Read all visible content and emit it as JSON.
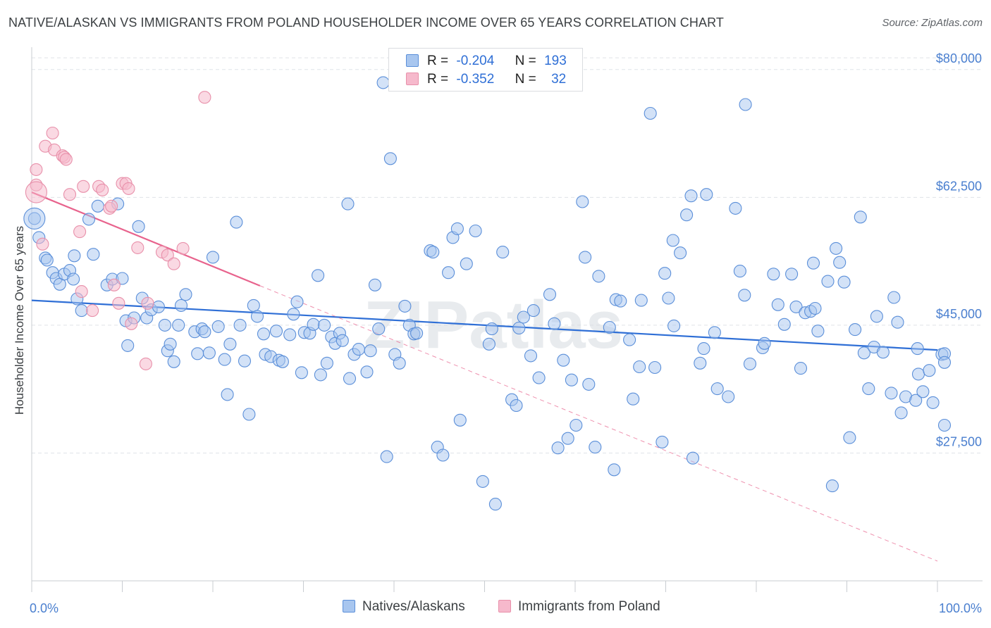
{
  "title": "NATIVE/ALASKAN VS IMMIGRANTS FROM POLAND HOUSEHOLDER INCOME OVER 65 YEARS CORRELATION CHART",
  "source": "Source: ZipAtlas.com",
  "watermark": "ZIPatlas",
  "colors": {
    "blue_fill": "#a8c6ef",
    "blue_stroke": "#5b8fd9",
    "blue_line": "#2f6fd6",
    "pink_fill": "#f6b9cc",
    "pink_stroke": "#e890aa",
    "pink_line": "#e8638d",
    "tick_text": "#4a7fcf",
    "grid": "#dfe3e8"
  },
  "legend": {
    "r_label": "R =",
    "n_label": "N =",
    "rows": [
      {
        "r": "-0.204",
        "n": "193"
      },
      {
        "r": "-0.352",
        "n": "32"
      }
    ]
  },
  "bottom_legend": [
    "Natives/Alaskans",
    "Immigrants from Poland"
  ],
  "chart_data": {
    "type": "scatter",
    "ylabel": "Householder Income Over 65 years",
    "xlabel": "",
    "xlim": [
      0,
      100
    ],
    "ylim": [
      10000,
      82000
    ],
    "x_tick_labels": [
      "0.0%",
      "100.0%"
    ],
    "y_ticks": [
      27500,
      45000,
      62500,
      80000
    ],
    "y_tick_labels": [
      "$27,500",
      "$45,000",
      "$62,500",
      "$80,000"
    ],
    "grid": "horizontal dashed",
    "legend_position": "top-center",
    "series": [
      {
        "name": "Natives/Alaskans",
        "color": "#a8c6ef",
        "trend": {
          "x": [
            0,
            100
          ],
          "y": [
            48400,
            41600
          ]
        },
        "points": [
          [
            0.3,
            59600
          ],
          [
            0.8,
            57000
          ],
          [
            1.5,
            54200
          ],
          [
            1.7,
            53900
          ],
          [
            2.3,
            52200
          ],
          [
            2.7,
            51400
          ],
          [
            3.1,
            50600
          ],
          [
            3.6,
            52000
          ],
          [
            4.2,
            52500
          ],
          [
            4.6,
            51300
          ],
          [
            5.0,
            48600
          ],
          [
            4.7,
            54500
          ],
          [
            5.5,
            47000
          ],
          [
            6.3,
            59500
          ],
          [
            6.8,
            54700
          ],
          [
            7.3,
            61300
          ],
          [
            8.3,
            50500
          ],
          [
            8.9,
            51300
          ],
          [
            9.5,
            61600
          ],
          [
            10.0,
            51400
          ],
          [
            10.4,
            45600
          ],
          [
            10.6,
            42200
          ],
          [
            11.3,
            46000
          ],
          [
            11.8,
            58500
          ],
          [
            12.2,
            48700
          ],
          [
            12.7,
            46000
          ],
          [
            13.2,
            47100
          ],
          [
            14.0,
            47500
          ],
          [
            14.7,
            45000
          ],
          [
            15.0,
            41500
          ],
          [
            15.3,
            42400
          ],
          [
            15.7,
            40000
          ],
          [
            16.2,
            45000
          ],
          [
            16.5,
            47700
          ],
          [
            17.0,
            49200
          ],
          [
            18.0,
            44100
          ],
          [
            18.3,
            41100
          ],
          [
            18.8,
            44500
          ],
          [
            19.1,
            44100
          ],
          [
            19.6,
            41200
          ],
          [
            20.0,
            54300
          ],
          [
            20.6,
            44800
          ],
          [
            21.3,
            40300
          ],
          [
            21.6,
            35500
          ],
          [
            21.9,
            42400
          ],
          [
            22.6,
            59100
          ],
          [
            23.0,
            45000
          ],
          [
            23.5,
            40100
          ],
          [
            24.0,
            32800
          ],
          [
            24.5,
            47700
          ],
          [
            24.9,
            46200
          ],
          [
            25.6,
            43800
          ],
          [
            25.8,
            41000
          ],
          [
            26.4,
            40700
          ],
          [
            27.0,
            44200
          ],
          [
            27.3,
            40200
          ],
          [
            27.7,
            40000
          ],
          [
            28.5,
            43700
          ],
          [
            28.9,
            46500
          ],
          [
            29.3,
            48200
          ],
          [
            29.8,
            38500
          ],
          [
            30.1,
            44000
          ],
          [
            30.7,
            43900
          ],
          [
            31.1,
            45100
          ],
          [
            31.6,
            51800
          ],
          [
            31.9,
            38200
          ],
          [
            32.3,
            45000
          ],
          [
            32.6,
            39800
          ],
          [
            33.1,
            43400
          ],
          [
            33.5,
            42500
          ],
          [
            34.0,
            43900
          ],
          [
            34.3,
            42900
          ],
          [
            34.9,
            61600
          ],
          [
            35.1,
            37700
          ],
          [
            35.6,
            41000
          ],
          [
            36.1,
            41700
          ],
          [
            37.0,
            38600
          ],
          [
            37.4,
            41500
          ],
          [
            37.9,
            50500
          ],
          [
            38.3,
            44500
          ],
          [
            38.8,
            78200
          ],
          [
            39.2,
            27000
          ],
          [
            39.6,
            67800
          ],
          [
            40.1,
            41000
          ],
          [
            40.6,
            39800
          ],
          [
            41.2,
            47600
          ],
          [
            41.7,
            45000
          ],
          [
            42.2,
            43800
          ],
          [
            42.5,
            43900
          ],
          [
            44.0,
            55200
          ],
          [
            44.3,
            55000
          ],
          [
            44.8,
            28300
          ],
          [
            45.4,
            27200
          ],
          [
            46.0,
            52200
          ],
          [
            46.5,
            57000
          ],
          [
            47.0,
            58200
          ],
          [
            47.3,
            32000
          ],
          [
            48.0,
            53400
          ],
          [
            49.0,
            57900
          ],
          [
            49.8,
            23600
          ],
          [
            50.5,
            42400
          ],
          [
            50.8,
            44500
          ],
          [
            51.2,
            20500
          ],
          [
            52.0,
            55000
          ],
          [
            53.0,
            34800
          ],
          [
            53.5,
            34000
          ],
          [
            53.8,
            44600
          ],
          [
            54.3,
            46100
          ],
          [
            55.1,
            40800
          ],
          [
            55.4,
            47000
          ],
          [
            56.0,
            37800
          ],
          [
            57.2,
            49200
          ],
          [
            57.7,
            45200
          ],
          [
            58.1,
            28200
          ],
          [
            58.7,
            40200
          ],
          [
            59.2,
            29500
          ],
          [
            59.6,
            37500
          ],
          [
            60.1,
            31300
          ],
          [
            60.8,
            61900
          ],
          [
            61.1,
            54300
          ],
          [
            61.5,
            36900
          ],
          [
            62.2,
            28300
          ],
          [
            62.6,
            51700
          ],
          [
            63.8,
            44700
          ],
          [
            64.3,
            25200
          ],
          [
            64.5,
            48500
          ],
          [
            65.0,
            48300
          ],
          [
            66.0,
            43000
          ],
          [
            66.4,
            34900
          ],
          [
            67.1,
            39300
          ],
          [
            67.3,
            48400
          ],
          [
            68.3,
            74000
          ],
          [
            68.8,
            39200
          ],
          [
            69.6,
            29000
          ],
          [
            69.9,
            52100
          ],
          [
            70.3,
            48700
          ],
          [
            70.9,
            44900
          ],
          [
            70.8,
            56600
          ],
          [
            71.6,
            54900
          ],
          [
            72.3,
            60100
          ],
          [
            72.8,
            62700
          ],
          [
            73.0,
            26800
          ],
          [
            73.8,
            39800
          ],
          [
            74.2,
            41800
          ],
          [
            74.5,
            62900
          ],
          [
            75.4,
            44000
          ],
          [
            75.7,
            36300
          ],
          [
            76.9,
            35200
          ],
          [
            77.7,
            61000
          ],
          [
            78.2,
            52400
          ],
          [
            78.7,
            49100
          ],
          [
            78.8,
            75200
          ],
          [
            79.3,
            39700
          ],
          [
            80.7,
            41900
          ],
          [
            80.9,
            42500
          ],
          [
            81.9,
            52000
          ],
          [
            82.4,
            47800
          ],
          [
            83.1,
            45100
          ],
          [
            83.9,
            52000
          ],
          [
            84.4,
            47500
          ],
          [
            84.9,
            39100
          ],
          [
            85.4,
            46700
          ],
          [
            86.0,
            46900
          ],
          [
            86.3,
            53500
          ],
          [
            86.5,
            47300
          ],
          [
            86.8,
            44200
          ],
          [
            87.9,
            51000
          ],
          [
            88.4,
            23000
          ],
          [
            88.8,
            55500
          ],
          [
            89.2,
            53600
          ],
          [
            89.7,
            50900
          ],
          [
            90.3,
            29600
          ],
          [
            90.9,
            44400
          ],
          [
            91.5,
            59800
          ],
          [
            91.9,
            41200
          ],
          [
            92.4,
            36300
          ],
          [
            93.0,
            42000
          ],
          [
            93.3,
            46200
          ],
          [
            94.0,
            41300
          ],
          [
            94.9,
            35700
          ],
          [
            95.2,
            48800
          ],
          [
            95.6,
            45400
          ],
          [
            96.0,
            33000
          ],
          [
            96.5,
            35200
          ],
          [
            97.6,
            34700
          ],
          [
            97.8,
            41800
          ],
          [
            97.9,
            38300
          ],
          [
            98.4,
            35900
          ],
          [
            99.1,
            38800
          ],
          [
            99.5,
            34400
          ],
          [
            100.5,
            41000
          ],
          [
            101.2,
            41100
          ],
          [
            101.7,
            31300
          ],
          [
            102.2,
            39900
          ]
        ]
      },
      {
        "name": "Immigrants from Poland",
        "color": "#f6b9cc",
        "trend": {
          "x": [
            0,
            25.2
          ],
          "y": [
            63200,
            50400
          ],
          "dashed_to": {
            "x": 100,
            "y": 12700
          }
        },
        "points": [
          [
            0.5,
            66300
          ],
          [
            0.5,
            64200
          ],
          [
            1.2,
            56100
          ],
          [
            1.5,
            69500
          ],
          [
            2.3,
            71300
          ],
          [
            2.5,
            69000
          ],
          [
            3.4,
            68200
          ],
          [
            3.6,
            68000
          ],
          [
            3.8,
            67700
          ],
          [
            4.2,
            62900
          ],
          [
            5.3,
            57800
          ],
          [
            5.5,
            49600
          ],
          [
            5.7,
            64000
          ],
          [
            6.7,
            47000
          ],
          [
            7.4,
            64000
          ],
          [
            7.8,
            63500
          ],
          [
            8.6,
            61000
          ],
          [
            8.8,
            61300
          ],
          [
            9.1,
            50500
          ],
          [
            9.6,
            48000
          ],
          [
            10.0,
            64400
          ],
          [
            10.4,
            64400
          ],
          [
            10.7,
            63700
          ],
          [
            11.0,
            45200
          ],
          [
            11.7,
            55600
          ],
          [
            12.6,
            39700
          ],
          [
            12.8,
            48000
          ],
          [
            14.4,
            55000
          ],
          [
            15.0,
            54600
          ],
          [
            15.7,
            53400
          ],
          [
            16.7,
            55500
          ],
          [
            19.1,
            76200
          ]
        ]
      }
    ]
  }
}
